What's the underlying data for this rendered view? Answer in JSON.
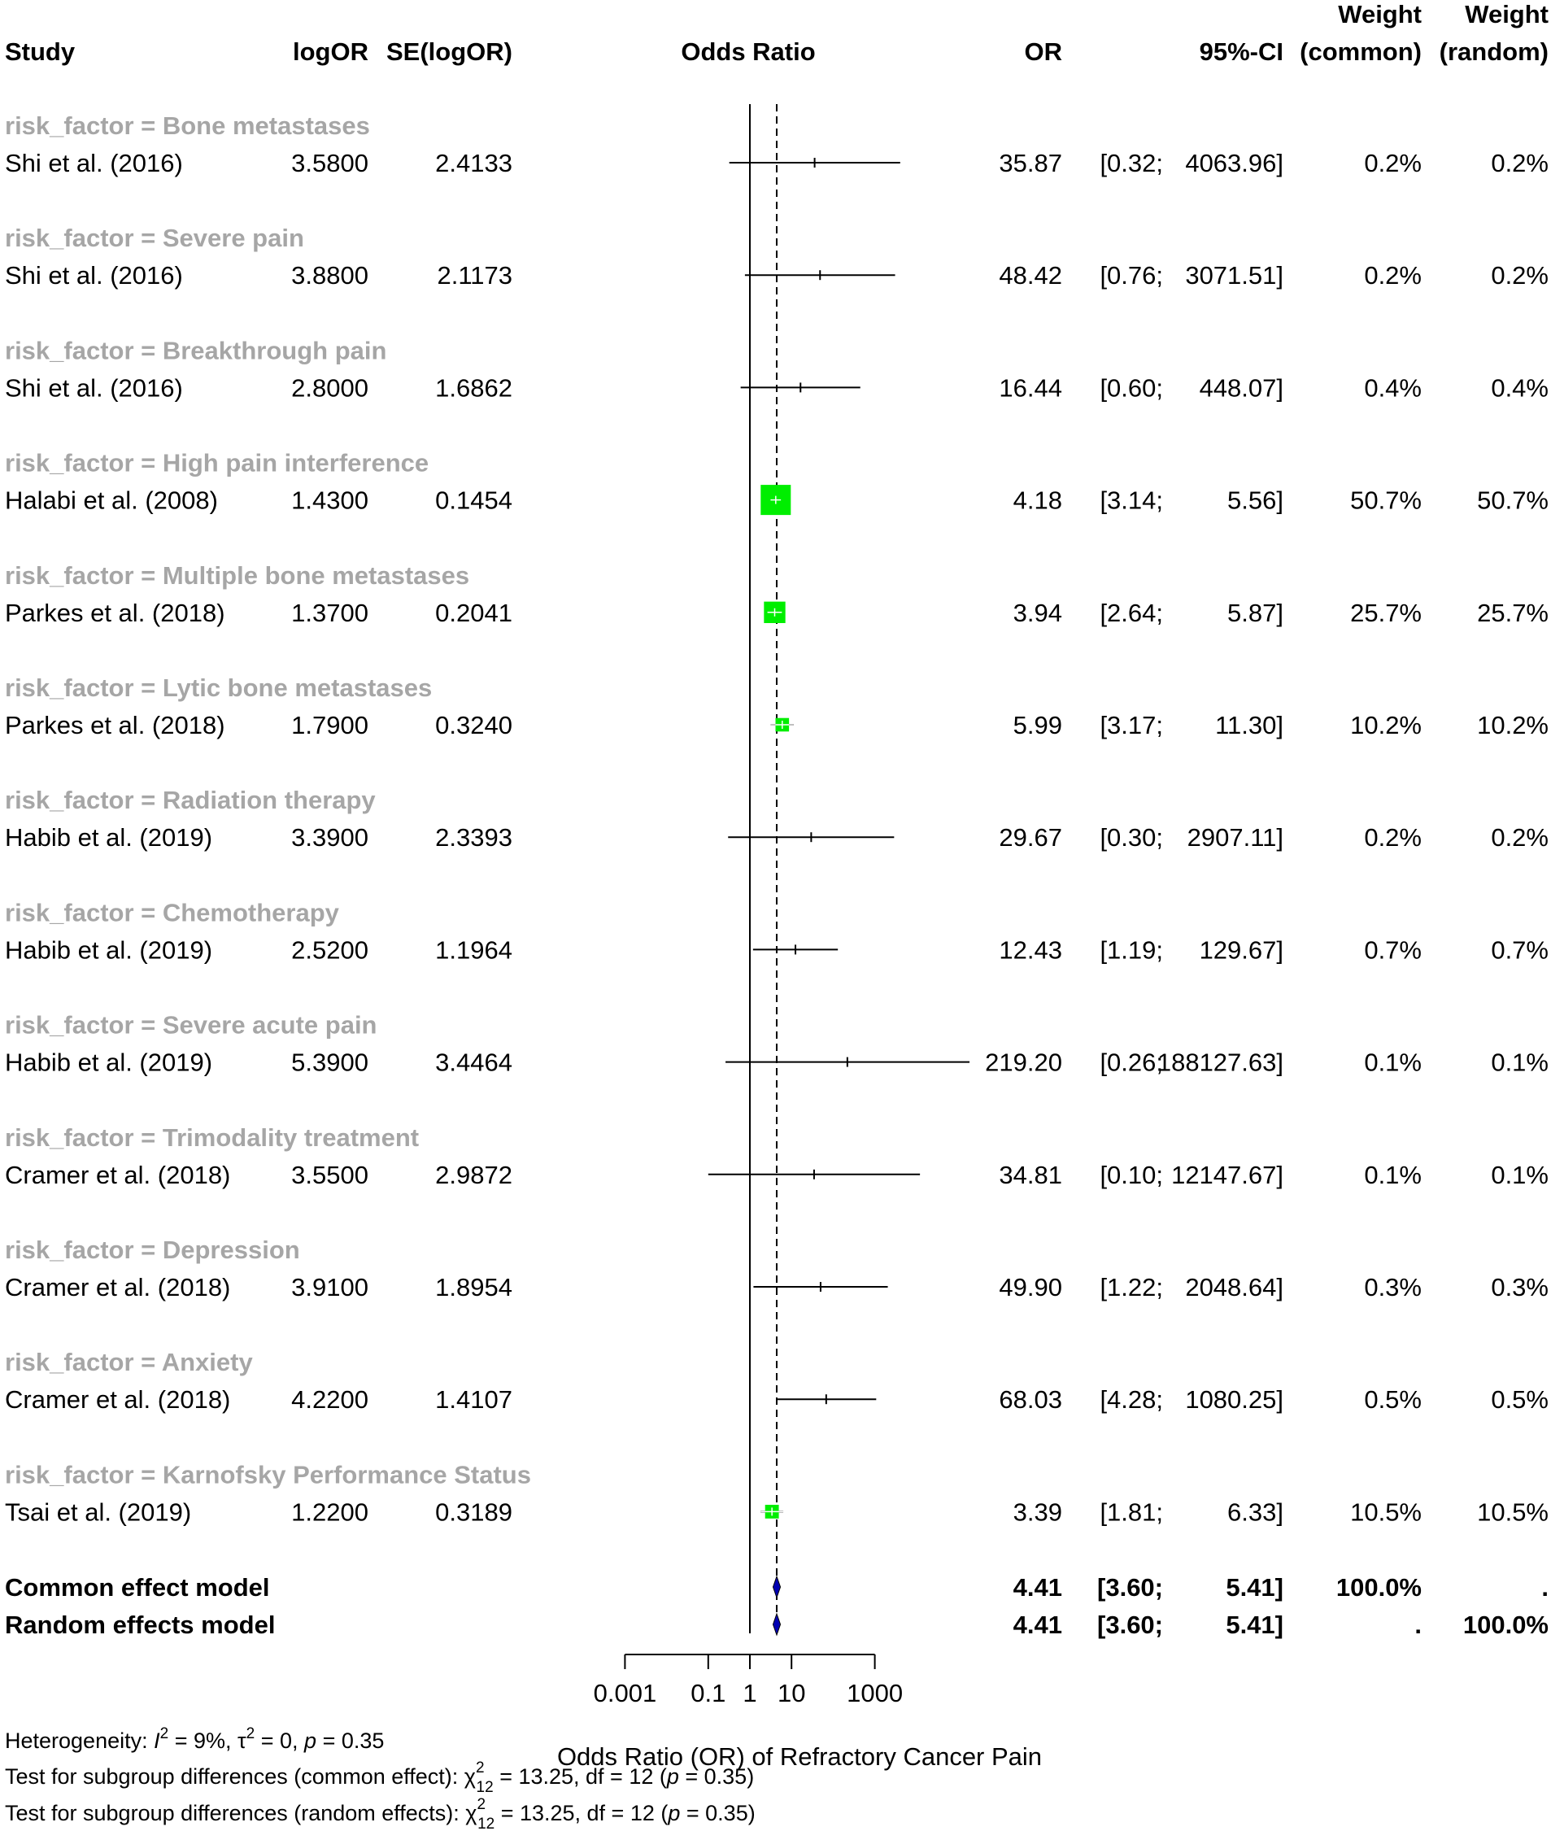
{
  "header": {
    "study": "Study",
    "logor": "logOR",
    "se": "SE(logOR)",
    "plot_title": "Odds Ratio",
    "or": "OR",
    "ci": "95%-CI",
    "weight_common_1": "Weight",
    "weight_common_2": "(common)",
    "weight_random_1": "Weight",
    "weight_random_2": "(random)"
  },
  "colors": {
    "square": "#00ee00",
    "diamond": "#0000b3",
    "subgroup_text": "#a6a6a6",
    "line": "#000000"
  },
  "chart_data": {
    "type": "forest",
    "x_scale": "log",
    "xlabel": "Odds Ratio (OR) of Refractory Cancer Pain",
    "xticks": [
      0.001,
      0.1,
      1,
      10,
      1000
    ],
    "xtick_labels": [
      "0.001",
      "0.1",
      "1",
      "10",
      "1000"
    ],
    "reference_line": 1,
    "pooled_line": 4.41,
    "subgroups": [
      {
        "label": "risk_factor = Bone metastases",
        "study": "Shi et al. (2016)",
        "logor": "3.5800",
        "se": "2.4133",
        "or": 35.87,
        "lower": 0.32,
        "upper": 4063.96,
        "or_text": "35.87",
        "lo_text": "[0.32;",
        "hi_text": "4063.96]",
        "w_common": "0.2%",
        "w_random": "0.2%",
        "weight": 0.2
      },
      {
        "label": "risk_factor = Severe pain",
        "study": "Shi et al. (2016)",
        "logor": "3.8800",
        "se": "2.1173",
        "or": 48.42,
        "lower": 0.76,
        "upper": 3071.51,
        "or_text": "48.42",
        "lo_text": "[0.76;",
        "hi_text": "3071.51]",
        "w_common": "0.2%",
        "w_random": "0.2%",
        "weight": 0.2
      },
      {
        "label": "risk_factor = Breakthrough pain",
        "study": "Shi et al. (2016)",
        "logor": "2.8000",
        "se": "1.6862",
        "or": 16.44,
        "lower": 0.6,
        "upper": 448.07,
        "or_text": "16.44",
        "lo_text": "[0.60;",
        "hi_text": "448.07]",
        "w_common": "0.4%",
        "w_random": "0.4%",
        "weight": 0.4
      },
      {
        "label": "risk_factor = High pain interference",
        "study": "Halabi et al. (2008)",
        "logor": "1.4300",
        "se": "0.1454",
        "or": 4.18,
        "lower": 3.14,
        "upper": 5.56,
        "or_text": "4.18",
        "lo_text": "[3.14;",
        "hi_text": "5.56]",
        "w_common": "50.7%",
        "w_random": "50.7%",
        "weight": 50.7
      },
      {
        "label": "risk_factor = Multiple bone metastases",
        "study": "Parkes et al. (2018)",
        "logor": "1.3700",
        "se": "0.2041",
        "or": 3.94,
        "lower": 2.64,
        "upper": 5.87,
        "or_text": "3.94",
        "lo_text": "[2.64;",
        "hi_text": "5.87]",
        "w_common": "25.7%",
        "w_random": "25.7%",
        "weight": 25.7
      },
      {
        "label": "risk_factor = Lytic bone metastases",
        "study": "Parkes et al. (2018)",
        "logor": "1.7900",
        "se": "0.3240",
        "or": 5.99,
        "lower": 3.17,
        "upper": 11.3,
        "or_text": "5.99",
        "lo_text": "[3.17;",
        "hi_text": "11.30]",
        "w_common": "10.2%",
        "w_random": "10.2%",
        "weight": 10.2
      },
      {
        "label": "risk_factor = Radiation therapy",
        "study": "Habib et al. (2019)",
        "logor": "3.3900",
        "se": "2.3393",
        "or": 29.67,
        "lower": 0.3,
        "upper": 2907.11,
        "or_text": "29.67",
        "lo_text": "[0.30;",
        "hi_text": "2907.11]",
        "w_common": "0.2%",
        "w_random": "0.2%",
        "weight": 0.2
      },
      {
        "label": "risk_factor = Chemotherapy",
        "study": "Habib et al. (2019)",
        "logor": "2.5200",
        "se": "1.1964",
        "or": 12.43,
        "lower": 1.19,
        "upper": 129.67,
        "or_text": "12.43",
        "lo_text": "[1.19;",
        "hi_text": "129.67]",
        "w_common": "0.7%",
        "w_random": "0.7%",
        "weight": 0.7
      },
      {
        "label": "risk_factor = Severe acute pain",
        "study": "Habib et al. (2019)",
        "logor": "5.3900",
        "se": "3.4464",
        "or": 219.2,
        "lower": 0.26,
        "upper": 188127.63,
        "or_text": "219.20",
        "lo_text": "[0.26;",
        "hi_text": "188127.63]",
        "w_common": "0.1%",
        "w_random": "0.1%",
        "weight": 0.1
      },
      {
        "label": "risk_factor = Trimodality treatment",
        "study": "Cramer et al. (2018)",
        "logor": "3.5500",
        "se": "2.9872",
        "or": 34.81,
        "lower": 0.1,
        "upper": 12147.67,
        "or_text": "34.81",
        "lo_text": "[0.10;",
        "hi_text": "12147.67]",
        "w_common": "0.1%",
        "w_random": "0.1%",
        "weight": 0.1
      },
      {
        "label": "risk_factor = Depression",
        "study": "Cramer et al. (2018)",
        "logor": "3.9100",
        "se": "1.8954",
        "or": 49.9,
        "lower": 1.22,
        "upper": 2048.64,
        "or_text": "49.90",
        "lo_text": "[1.22;",
        "hi_text": "2048.64]",
        "w_common": "0.3%",
        "w_random": "0.3%",
        "weight": 0.3
      },
      {
        "label": "risk_factor = Anxiety",
        "study": "Cramer et al. (2018)",
        "logor": "4.2200",
        "se": "1.4107",
        "or": 68.03,
        "lower": 4.28,
        "upper": 1080.25,
        "or_text": "68.03",
        "lo_text": "[4.28;",
        "hi_text": "1080.25]",
        "w_common": "0.5%",
        "w_random": "0.5%",
        "weight": 0.5
      },
      {
        "label": "risk_factor = Karnofsky Performance Status",
        "study": "Tsai et al. (2019)",
        "logor": "1.2200",
        "se": "0.3189",
        "or": 3.39,
        "lower": 1.81,
        "upper": 6.33,
        "or_text": "3.39",
        "lo_text": "[1.81;",
        "hi_text": "6.33]",
        "w_common": "10.5%",
        "w_random": "10.5%",
        "weight": 10.5
      }
    ],
    "pooled": [
      {
        "label": "Common effect model",
        "or": 4.41,
        "lower": 3.6,
        "upper": 5.41,
        "or_text": "4.41",
        "lo_text": "[3.60;",
        "hi_text": "5.41]",
        "w_common": "100.0%",
        "w_random": "."
      },
      {
        "label": "Random effects model",
        "or": 4.41,
        "lower": 3.6,
        "upper": 5.41,
        "or_text": "4.41",
        "lo_text": "[3.60;",
        "hi_text": "5.41]",
        "w_common": ".",
        "w_random": "100.0%"
      }
    ]
  },
  "footer": {
    "heterogeneity_prefix": "Heterogeneity: ",
    "i2_symbol": "I",
    "i2_sup": "2",
    "i2_value": " = 9%, ",
    "tau_symbol": "τ",
    "tau_sup": "2",
    "tau_value": " = 0, ",
    "p_symbol": "p",
    "p_value": " = 0.35",
    "common_test_label": "Test for subgroup differences (common effect): ",
    "random_test_label": "Test for subgroup differences (random effects): ",
    "chi_symbol": "χ",
    "chi_sup": "2",
    "chi_sub": "12",
    "chi_value": " = 13.25, df = 12 (",
    "chi_p_symbol": "p",
    "chi_p_value": " = 0.35)"
  }
}
